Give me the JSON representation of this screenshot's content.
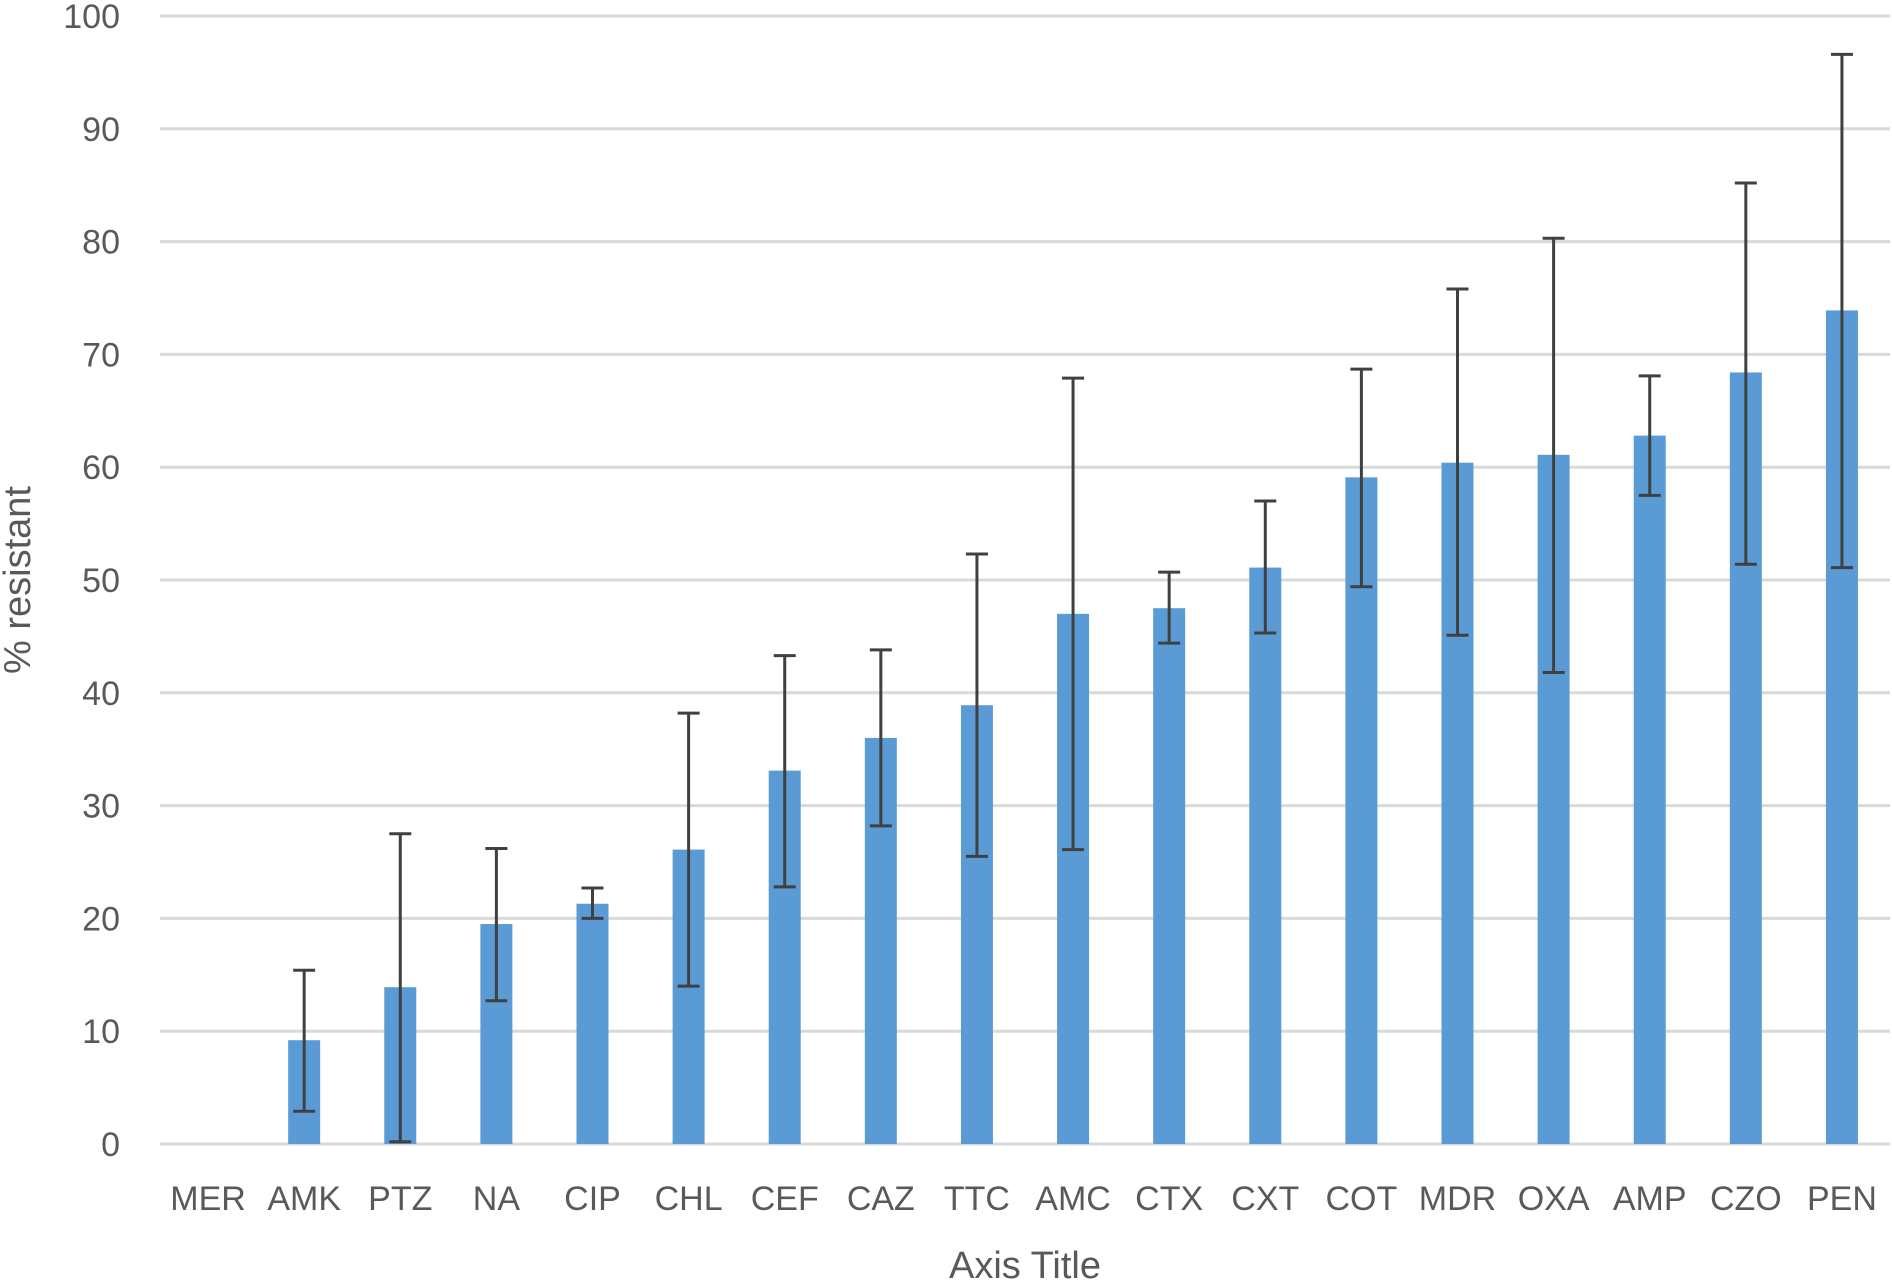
{
  "chart_data": {
    "type": "bar",
    "categories": [
      "MER",
      "AMK",
      "PTZ",
      "NA",
      "CIP",
      "CHL",
      "CEF",
      "CAZ",
      "TTC",
      "AMC",
      "CTX",
      "CXT",
      "COT",
      "MDR",
      "OXA",
      "AMP",
      "CZO",
      "PEN"
    ],
    "values": [
      0,
      9.2,
      13.9,
      19.5,
      21.3,
      26.1,
      33.1,
      36.0,
      38.9,
      47.0,
      47.5,
      51.1,
      59.1,
      60.4,
      61.1,
      62.8,
      68.4,
      73.9
    ],
    "error_low": [
      0,
      2.9,
      0.2,
      12.7,
      20.0,
      14.0,
      22.8,
      28.2,
      25.5,
      26.1,
      44.4,
      45.3,
      49.4,
      45.1,
      41.8,
      57.5,
      51.4,
      51.1
    ],
    "error_high": [
      0,
      15.4,
      27.5,
      26.2,
      22.7,
      38.2,
      43.3,
      43.8,
      52.3,
      67.9,
      50.7,
      57.0,
      68.7,
      75.8,
      80.3,
      68.1,
      85.2,
      96.6
    ],
    "xlabel": "Axis Title",
    "ylabel": "% resistant",
    "ylim": [
      0,
      100
    ],
    "yticks": [
      "0",
      "10",
      "20",
      "30",
      "40",
      "50",
      "60",
      "70",
      "80",
      "90",
      "100"
    ],
    "grid": true,
    "colors": {
      "bar": "#5b9bd5",
      "error_bar": "#404040",
      "grid": "#d9d9d9",
      "text": "#595959"
    }
  }
}
